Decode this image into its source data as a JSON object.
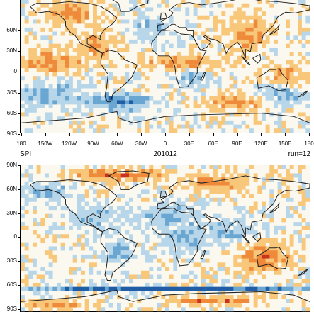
{
  "top_panel": {
    "lat_labels": [
      "60N",
      "30N",
      "0",
      "30S",
      "60S",
      "90S"
    ],
    "lon_labels": [
      "180",
      "150W",
      "120W",
      "90W",
      "60W",
      "30W",
      "0",
      "30E",
      "60E",
      "90E",
      "120E",
      "150E",
      "180"
    ]
  },
  "bottom_panel": {
    "title_left": "SPI",
    "title_center": "201012",
    "title_right": "run=12",
    "lat_labels": [
      "90N",
      "60N",
      "30N",
      "0",
      "30S",
      "60S",
      "90S"
    ]
  },
  "colors": {
    "dry_strong": "#c8321e",
    "dry": "#ee8a3a",
    "dry_light": "#f8c77a",
    "wet_light": "#b8d6ea",
    "wet": "#6aa6d2",
    "wet_strong": "#1f5ea6",
    "neutral": "#fbf8ef"
  }
}
